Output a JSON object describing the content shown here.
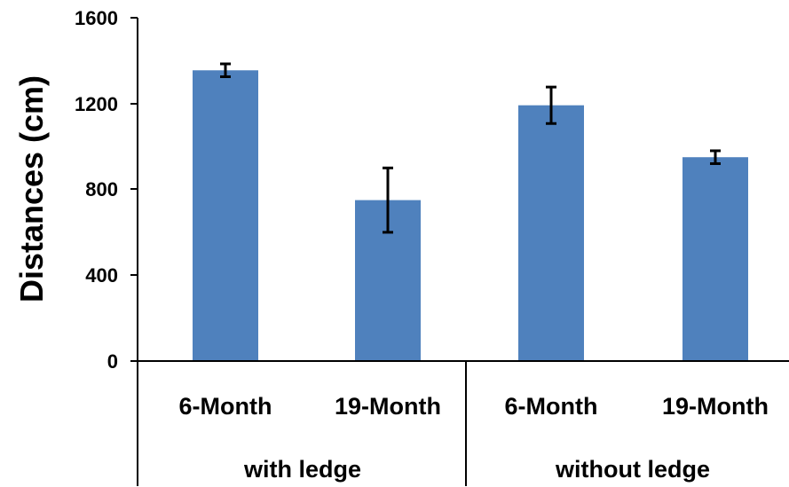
{
  "chart_data": {
    "type": "bar",
    "title": "",
    "xlabel": "",
    "ylabel": "Distances (cm)",
    "ylim": [
      0,
      1600
    ],
    "yticks": [
      "0",
      "400",
      "800",
      "1200",
      "1600"
    ],
    "grid": false,
    "legend": "none",
    "bar_color": "#4f81bd",
    "groups": [
      {
        "label": "with ledge",
        "categories": [
          "6-Month",
          "19-Month"
        ]
      },
      {
        "label": "without ledge",
        "categories": [
          "6-Month",
          "19-Month"
        ]
      }
    ],
    "categories": [
      "6-Month",
      "19-Month",
      "6-Month",
      "19-Month"
    ],
    "series": [
      {
        "values": [
          1355,
          750,
          1192,
          950
        ],
        "errors": [
          30,
          150,
          85,
          30
        ]
      }
    ]
  }
}
